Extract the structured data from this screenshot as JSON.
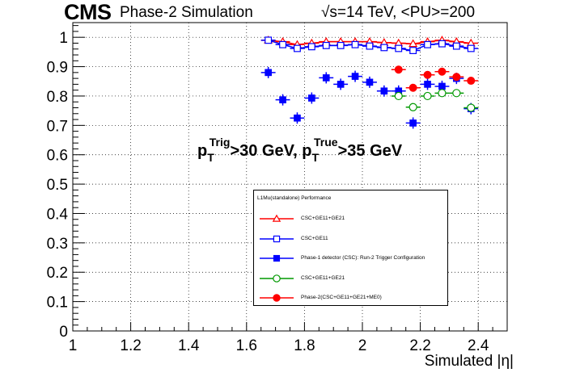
{
  "header": {
    "experiment": "CMS",
    "subtitle": "Phase-2 Simulation",
    "energy_prefix": "√s=14 TeV, <PU>=200"
  },
  "annotation": {
    "p1": "p",
    "p1_sub": "T",
    "p1_sup": "Trig",
    "p1_rest": ">30 GeV, ",
    "p2": "p",
    "p2_sub": "T",
    "p2_sup": "True",
    "p2_rest": ">35 GeV"
  },
  "legend": {
    "title": "L1Mu(standalone) Performance",
    "entries": [
      {
        "label": "CSC+GE11+GE21",
        "color": "#ff0000",
        "marker": "open-triangle"
      },
      {
        "label": "CSC+GE11",
        "color": "#0000ff",
        "marker": "open-square"
      },
      {
        "label": "Phase-1 detector (CSC): Run-2 Trigger Configuration",
        "color": "#0000ff",
        "marker": "filled-square"
      },
      {
        "label": "CSC+GE11+GE21",
        "color": "#009900",
        "marker": "open-circle"
      },
      {
        "label": "Phase-2(CSC+GE11+GE21+ME0)",
        "color": "#ff0000",
        "marker": "filled-circle"
      }
    ]
  },
  "chart_data": {
    "type": "scatter",
    "title": "",
    "xlabel": "Simulated |η|",
    "ylabel": "",
    "xlim": [
      1,
      2.5
    ],
    "ylim": [
      0,
      1.05
    ],
    "xticks": [
      "1",
      "1.2",
      "1.4",
      "1.6",
      "1.8",
      "2",
      "2.2",
      "2.4"
    ],
    "xtick_values": [
      1,
      1.2,
      1.4,
      1.6,
      1.8,
      2,
      2.2,
      2.4
    ],
    "yticks": [
      "0",
      "0.1",
      "0.2",
      "0.3",
      "0.4",
      "0.5",
      "0.6",
      "0.7",
      "0.8",
      "0.9",
      "1"
    ],
    "ytick_values": [
      0,
      0.1,
      0.2,
      0.3,
      0.4,
      0.5,
      0.6,
      0.7,
      0.8,
      0.9,
      1
    ],
    "grid": true,
    "x_bin_half_width": 0.025,
    "series": [
      {
        "name": "CSC+GE11+GE21",
        "color": "#ff0000",
        "marker": "open-triangle",
        "connected": true,
        "x": [
          1.675,
          1.725,
          1.775,
          1.825,
          1.875,
          1.925,
          1.975,
          2.025,
          2.075,
          2.125,
          2.175,
          2.225,
          2.275,
          2.325,
          2.375
        ],
        "y": [
          0.99,
          0.985,
          0.975,
          0.98,
          0.985,
          0.985,
          0.985,
          0.985,
          0.982,
          0.98,
          0.978,
          0.985,
          0.99,
          0.985,
          0.98
        ]
      },
      {
        "name": "CSC+GE11",
        "color": "#0000ff",
        "marker": "open-square",
        "connected": true,
        "x": [
          1.675,
          1.725,
          1.775,
          1.825,
          1.875,
          1.925,
          1.975,
          2.025,
          2.075,
          2.125,
          2.175,
          2.225,
          2.275,
          2.325,
          2.375
        ],
        "y": [
          0.99,
          0.975,
          0.962,
          0.968,
          0.972,
          0.972,
          0.975,
          0.97,
          0.965,
          0.962,
          0.955,
          0.975,
          0.978,
          0.97,
          0.962
        ]
      },
      {
        "name": "Phase-1 detector (CSC): Run-2 Trigger Configuration",
        "color": "#0000ff",
        "marker": "filled-square",
        "connected": false,
        "x": [
          1.675,
          1.725,
          1.775,
          1.825,
          1.875,
          1.925,
          1.975,
          2.025,
          2.075,
          2.125,
          2.175,
          2.225,
          2.275,
          2.325,
          2.375
        ],
        "y": [
          0.88,
          0.787,
          0.725,
          0.793,
          0.862,
          0.84,
          0.867,
          0.847,
          0.817,
          0.817,
          0.708,
          0.84,
          0.833,
          0.86,
          0.757
        ]
      },
      {
        "name": "CSC+GE11+GE21",
        "color": "#009900",
        "marker": "open-circle",
        "connected": false,
        "x": [
          2.125,
          2.175,
          2.225,
          2.275,
          2.325,
          2.375
        ],
        "y": [
          0.8,
          0.762,
          0.8,
          0.81,
          0.81,
          0.76
        ]
      },
      {
        "name": "Phase-2(CSC+GE11+GE21+ME0)",
        "color": "#ff0000",
        "marker": "filled-circle",
        "connected": false,
        "x": [
          2.125,
          2.175,
          2.225,
          2.275,
          2.325,
          2.375
        ],
        "y": [
          0.89,
          0.828,
          0.872,
          0.883,
          0.865,
          0.852
        ]
      }
    ]
  }
}
